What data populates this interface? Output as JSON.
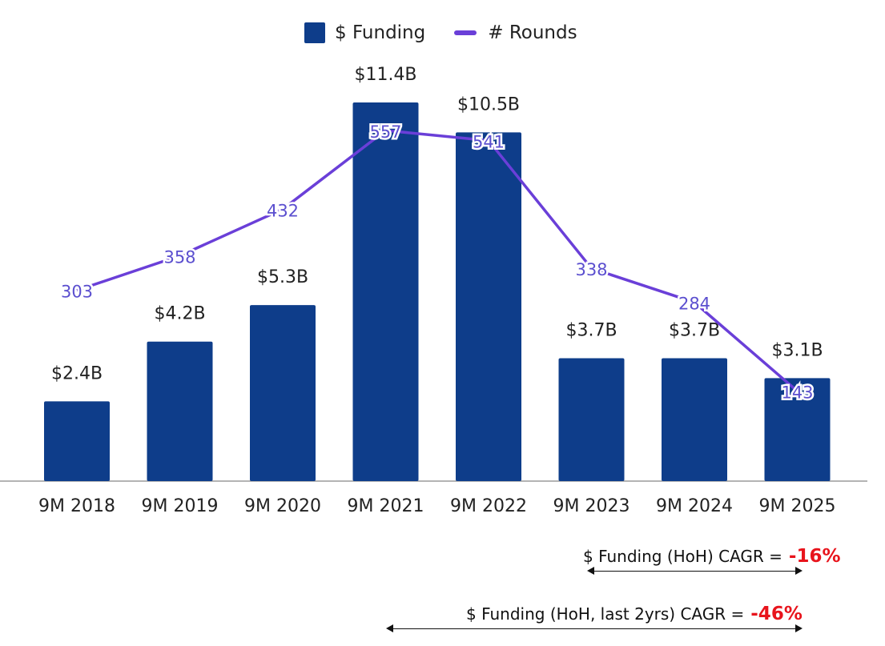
{
  "chart_data": {
    "type": "bar",
    "categories": [
      "9M 2018",
      "9M 2019",
      "9M 2020",
      "9M 2021",
      "9M 2022",
      "9M 2023",
      "9M 2024",
      "9M 2025"
    ],
    "series": [
      {
        "name": "$ Funding",
        "type": "bar",
        "values": [
          2.4,
          4.2,
          5.3,
          11.4,
          10.5,
          3.7,
          3.7,
          3.1
        ],
        "labels": [
          "$2.4B",
          "$4.2B",
          "$5.3B",
          "$11.4B",
          "$10.5B",
          "$3.7B",
          "$3.7B",
          "$3.1B"
        ],
        "color": "#0e3d8a"
      },
      {
        "name": "# Rounds",
        "type": "line",
        "values": [
          303,
          358,
          432,
          557,
          541,
          338,
          284,
          143
        ],
        "color": "#6a3fd8"
      }
    ],
    "ylim_funding": [
      0,
      12
    ],
    "ylim_rounds": [
      0,
      600
    ]
  },
  "legend": {
    "funding_label": "$ Funding",
    "rounds_label": "# Rounds"
  },
  "annotations": {
    "cagr_hoh_label": "$ Funding (HoH) CAGR =",
    "cagr_hoh_value": "-16%",
    "cagr_2yr_label": "$ Funding (HoH, last 2yrs) CAGR =",
    "cagr_2yr_value": "-46%"
  }
}
